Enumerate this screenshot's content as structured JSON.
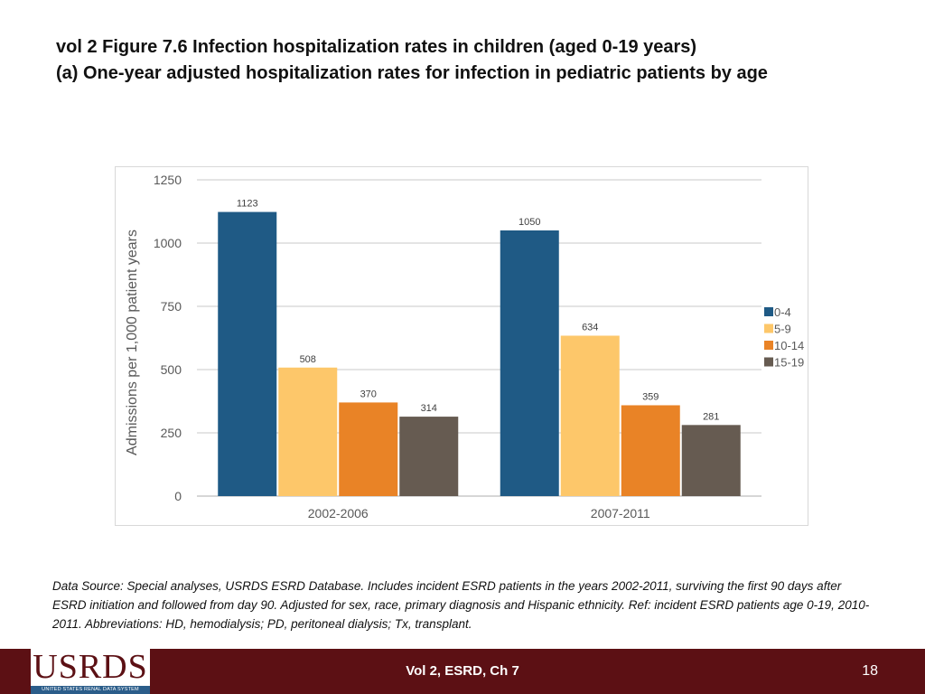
{
  "slide": {
    "title_line1": "vol 2 Figure 7.6 Infection hospitalization rates in children (aged 0-19 years)",
    "title_line2": "(a) One-year adjusted hospitalization rates for infection in pediatric patients by age",
    "source_note": "Data Source: Special analyses, USRDS ESRD Database. Includes incident ESRD patients in the years 2002-2011, surviving the first 90 days after ESRD initiation and followed from day 90. Adjusted for sex, race, primary diagnosis and Hispanic ethnicity. Ref: incident ESRD patients age 0-19, 2010-2011. Abbreviations: HD, hemodialysis; PD, peritoneal dialysis; Tx, transplant.",
    "footer_label": "Vol 2, ESRD, Ch 7",
    "page_number": "18",
    "logo_text": "USRDS",
    "logo_subtext": "UNITED STATES RENAL DATA SYSTEM"
  },
  "colors": {
    "footer_bg": "#5c1014",
    "series": [
      "#1f5a85",
      "#fdc76a",
      "#e98326",
      "#665b51"
    ],
    "gridline": "#c8c8c8",
    "axis_text": "#595959"
  },
  "chart_data": {
    "type": "bar",
    "title": "",
    "xlabel": "",
    "ylabel": "Admissions per 1,000 patient years",
    "categories": [
      "2002-2006",
      "2007-2011"
    ],
    "series": [
      {
        "name": "0-4",
        "values": [
          1123,
          1050
        ]
      },
      {
        "name": "5-9",
        "values": [
          508,
          634
        ]
      },
      {
        "name": "10-14",
        "values": [
          370,
          359
        ]
      },
      {
        "name": "15-19",
        "values": [
          314,
          281
        ]
      }
    ],
    "ylim": [
      0,
      1250
    ],
    "yticks": [
      0,
      250,
      500,
      750,
      1000,
      1250
    ],
    "grid": true,
    "legend_position": "right"
  }
}
